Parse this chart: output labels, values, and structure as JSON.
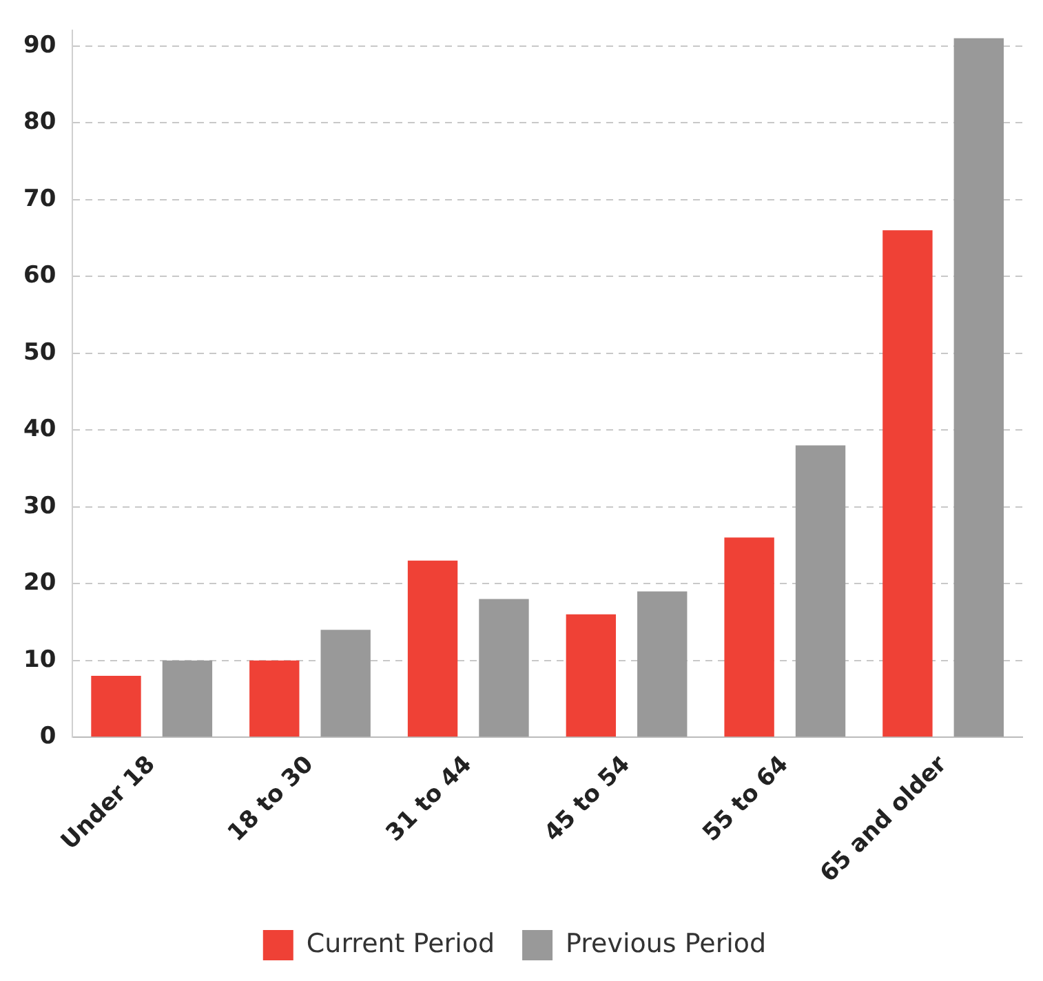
{
  "chart_data": {
    "type": "bar",
    "categories": [
      "Under 18",
      "18 to 30",
      "31 to 44",
      "45 to 54",
      "55 to 64",
      "65 and older"
    ],
    "series": [
      {
        "name": "Current Period",
        "color": "#ef4136",
        "values": [
          8,
          10,
          23,
          16,
          26,
          66
        ]
      },
      {
        "name": "Previous Period",
        "color": "#999999",
        "values": [
          10,
          14,
          18,
          19,
          38,
          91
        ]
      }
    ],
    "ylim": [
      0,
      92
    ],
    "yticks": [
      0,
      10,
      20,
      30,
      40,
      50,
      60,
      70,
      80,
      90
    ],
    "grid": "y",
    "legend": "bottom"
  }
}
